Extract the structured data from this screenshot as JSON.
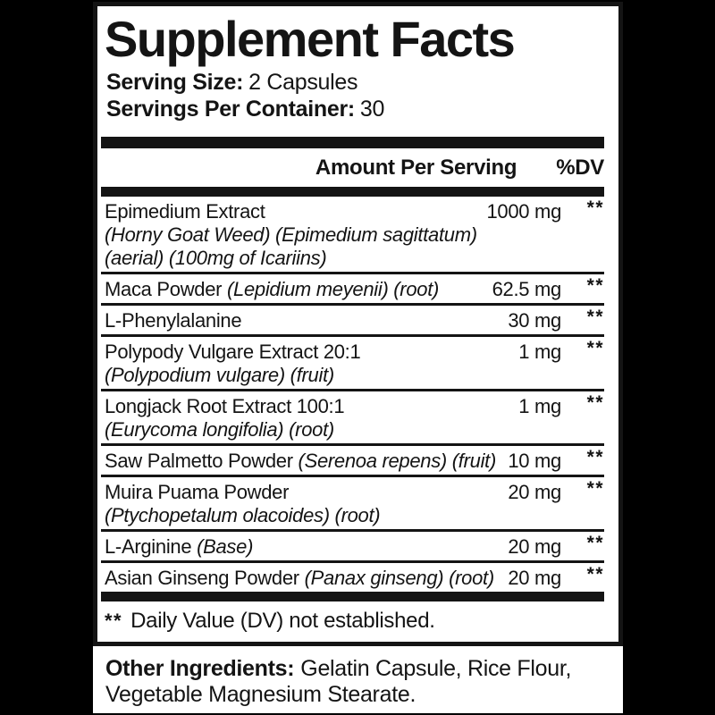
{
  "colors": {
    "background": "#000000",
    "panel": "#ffffff",
    "text": "#141414"
  },
  "label": {
    "title": "Supplement Facts",
    "serving_size_label": "Serving Size:",
    "serving_size_value": "2 Capsules",
    "servings_per_container_label": "Servings Per Container:",
    "servings_per_container_value": "30",
    "columns": {
      "amount_header": "Amount Per Serving",
      "dv_header": "%DV"
    },
    "rows": [
      {
        "name": "Epimedium Extract",
        "name_italic": "",
        "sub_lines": [
          "(Horny Goat Weed) (Epimedium sagittatum)",
          "(aerial) (100mg of Icariins)"
        ],
        "amount": "1000 mg",
        "dv": "**"
      },
      {
        "name": "Maca Powder ",
        "name_italic": "(Lepidium meyenii) (root)",
        "sub_lines": [],
        "amount": "62.5 mg",
        "dv": "**"
      },
      {
        "name": "L-Phenylalanine",
        "name_italic": "",
        "sub_lines": [],
        "amount": "30 mg",
        "dv": "**"
      },
      {
        "name": "Polypody Vulgare Extract 20:1",
        "name_italic": "",
        "sub_lines": [
          "(Polypodium vulgare) (fruit)"
        ],
        "amount": "1 mg",
        "dv": "**"
      },
      {
        "name": "Longjack Root Extract 100:1",
        "name_italic": "",
        "sub_lines": [
          "(Eurycoma longifolia) (root)"
        ],
        "amount": "1 mg",
        "dv": "**"
      },
      {
        "name": "Saw Palmetto Powder ",
        "name_italic": "(Serenoa repens) (fruit)",
        "sub_lines": [],
        "amount": "10 mg",
        "dv": "**"
      },
      {
        "name": "Muira Puama Powder",
        "name_italic": "",
        "sub_lines": [
          "(Ptychopetalum olacoides) (root)"
        ],
        "amount": "20 mg",
        "dv": "**"
      },
      {
        "name": "L-Arginine ",
        "name_italic": "(Base)",
        "sub_lines": [],
        "amount": "20 mg",
        "dv": "**"
      },
      {
        "name": "Asian Ginseng Powder ",
        "name_italic": "(Panax ginseng) (root)",
        "sub_lines": [],
        "amount": "20 mg",
        "dv": "**"
      }
    ],
    "footnote_mark": "**",
    "footnote_text": "Daily Value (DV) not established.",
    "other_ingredients_label": "Other Ingredients:",
    "other_ingredients_value": "Gelatin Capsule, Rice Flour, Vegetable Magnesium Stearate."
  }
}
